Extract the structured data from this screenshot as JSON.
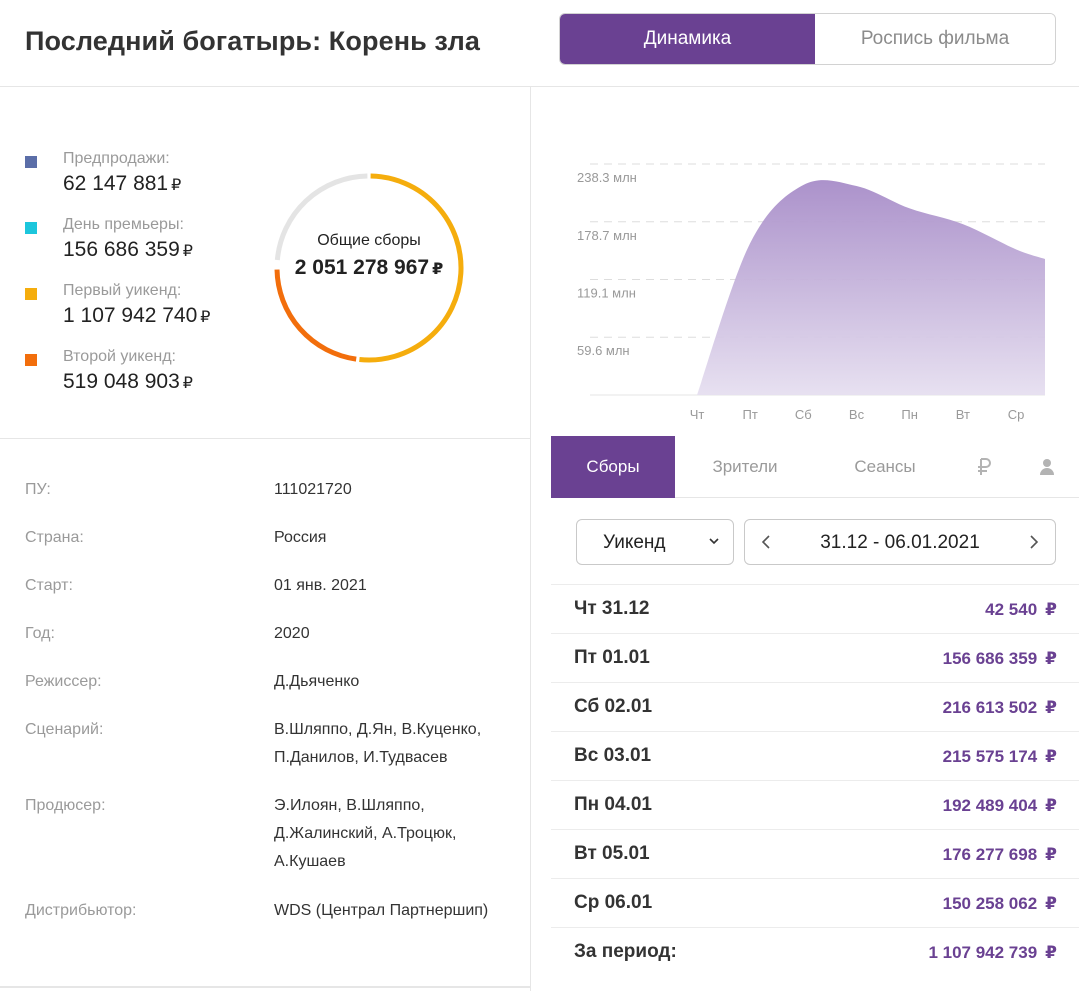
{
  "header": {
    "title": "Последний богатырь: Корень зла",
    "tabs": [
      {
        "label": "Динамика",
        "active": true
      },
      {
        "label": "Роспись фильма",
        "active": false
      }
    ]
  },
  "totals": {
    "items": [
      {
        "label": "Предпродажи:",
        "value": "62 147 881",
        "color": "#5b6ea8"
      },
      {
        "label": "День премьеры:",
        "value": "156 686 359",
        "color": "#1cc6dc"
      },
      {
        "label": "Первый уикенд:",
        "value": "1 107 942 740",
        "color": "#f5ad0d"
      },
      {
        "label": "Второй уикенд:",
        "value": "519 048 903",
        "color": "#f26e0c"
      }
    ],
    "currency": "₽",
    "donut_label": "Общие сборы",
    "donut_value": "2 051 278 967"
  },
  "info": [
    {
      "key": "ПУ:",
      "value": "111021720"
    },
    {
      "key": "Страна:",
      "value": "Россия"
    },
    {
      "key": "Старт:",
      "value": "01 янв. 2021"
    },
    {
      "key": "Год:",
      "value": "2020"
    },
    {
      "key": "Режиссер:",
      "value": "Д.Дьяченко"
    },
    {
      "key": "Сценарий:",
      "value": "В.Шляппо, Д.Ян, В.Куценко, П.Данилов, И.Тудвасев"
    },
    {
      "key": "Продюсер:",
      "value": "Э.Илоян, В.Шляппо, Д.Жалинский, А.Троцюк, А.Кушаев"
    },
    {
      "key": "Дистрибьютор:",
      "value": "WDS (Централ Партнершип)"
    }
  ],
  "chart_data": {
    "type": "area",
    "categories": [
      "Чт",
      "Пт",
      "Сб",
      "Вс",
      "Пн",
      "Вт",
      "Ср"
    ],
    "values": [
      42540,
      156686359,
      216613502,
      215575174,
      192489404,
      176277698,
      150258062
    ],
    "y_tick_labels": [
      "59.6 млн",
      "119.1 млн",
      "178.7 млн",
      "238.3 млн"
    ],
    "y_ticks": [
      59600000,
      119100000,
      178700000,
      238300000
    ],
    "ylim": [
      0,
      238300000
    ],
    "grid": true,
    "fill_color": "#b9a4d4"
  },
  "metric_tabs": {
    "items": [
      {
        "label": "Сборы",
        "active": true
      },
      {
        "label": "Зрители",
        "active": false
      },
      {
        "label": "Сеансы",
        "active": false
      }
    ],
    "icons": [
      "ruble-icon",
      "person-icon"
    ]
  },
  "filter": {
    "period": "Уикенд",
    "range": "31.12 - 06.01.2021"
  },
  "table": {
    "rows": [
      {
        "day": "Чт 31.12",
        "amount": "42 540"
      },
      {
        "day": "Пт 01.01",
        "amount": "156 686 359"
      },
      {
        "day": "Сб 02.01",
        "amount": "216 613 502"
      },
      {
        "day": "Вс 03.01",
        "amount": "215 575 174"
      },
      {
        "day": "Пн 04.01",
        "amount": "192 489 404"
      },
      {
        "day": "Вт 05.01",
        "amount": "176 277 698"
      },
      {
        "day": "Ср 06.01",
        "amount": "150 258 062"
      }
    ],
    "total_label": "За период:",
    "total_amount": "1 107 942 739",
    "currency": "₽"
  },
  "colors": {
    "accent": "#6a4192",
    "muted": "#9a9a9a"
  }
}
